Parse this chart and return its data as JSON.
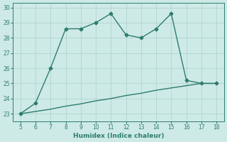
{
  "x": [
    5,
    6,
    7,
    8,
    9,
    10,
    11,
    12,
    13,
    14,
    15,
    16,
    17,
    18
  ],
  "y_main": [
    23,
    23.7,
    26,
    28.6,
    28.6,
    29,
    29.6,
    28.2,
    28,
    28.6,
    29.6,
    25.2,
    25,
    25
  ],
  "y_ref": [
    23,
    23.15,
    23.3,
    23.5,
    23.65,
    23.85,
    24.0,
    24.2,
    24.35,
    24.55,
    24.7,
    24.85,
    25.0,
    25.0
  ],
  "line_color": "#2e7d6e",
  "bg_color": "#ceeae6",
  "grid_color": "#afd4cf",
  "xlabel": "Humidex (Indice chaleur)",
  "ylim": [
    22.5,
    30.3
  ],
  "xlim": [
    4.5,
    18.5
  ],
  "yticks": [
    23,
    24,
    25,
    26,
    27,
    28,
    29,
    30
  ],
  "xticks": [
    5,
    6,
    7,
    8,
    9,
    10,
    11,
    12,
    13,
    14,
    15,
    16,
    17,
    18
  ],
  "markersize": 2.5,
  "linewidth": 1.0
}
